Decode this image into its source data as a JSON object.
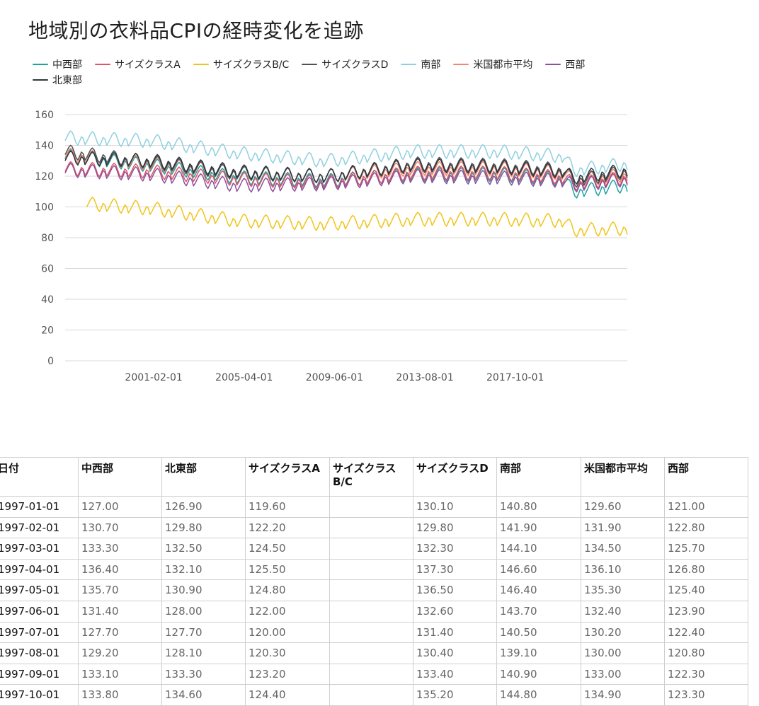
{
  "title": "地域別の衣料品CPIの経時変化を追跡",
  "legend": [
    {
      "name": "中西部",
      "color": "#1aa3a3"
    },
    {
      "name": "サイズクラスA",
      "color": "#e05563"
    },
    {
      "name": "サイズクラスB/C",
      "color": "#f0c419"
    },
    {
      "name": "サイズクラスD",
      "color": "#4b5357"
    },
    {
      "name": "南部",
      "color": "#8fd0e0"
    },
    {
      "name": "米国都市平均",
      "color": "#f2856a"
    },
    {
      "name": "西部",
      "color": "#8e4f9e"
    },
    {
      "name": "北東部",
      "color": "#2f3640"
    }
  ],
  "chart_data": {
    "type": "line",
    "title": "地域別の衣料品CPIの経時変化を追跡",
    "xlabel": "",
    "ylabel": "",
    "x_range": [
      "1997-01-01",
      "2022-12-01"
    ],
    "ylim": [
      0,
      160
    ],
    "y_ticks": [
      0,
      20,
      40,
      60,
      80,
      100,
      120,
      140,
      160
    ],
    "x_tick_labels": [
      "2001-02-01",
      "2005-04-01",
      "2009-06-01",
      "2013-08-01",
      "2017-10-01"
    ],
    "grid": "horizontal",
    "legend_position": "top",
    "seasonal_pattern_by_month": [
      0,
      2.5,
      5,
      6.5,
      5.5,
      2.5,
      -1,
      -2.5,
      0,
      3,
      2,
      -2
    ],
    "series": [
      {
        "name": "中西部",
        "color": "#1aa3a3",
        "anchors": [
          [
            "1997-01-01",
            131
          ],
          [
            "2001-01-01",
            125
          ],
          [
            "2005-01-01",
            117
          ],
          [
            "2009-01-01",
            115
          ],
          [
            "2013-01-01",
            119
          ],
          [
            "2017-01-01",
            119
          ],
          [
            "2020-01-01",
            116
          ],
          [
            "2020-06-01",
            108
          ],
          [
            "2022-12-01",
            112
          ]
        ]
      },
      {
        "name": "サイズクラスA",
        "color": "#e05563",
        "anchors": [
          [
            "1997-01-01",
            123
          ],
          [
            "2001-01-01",
            121
          ],
          [
            "2005-01-01",
            116
          ],
          [
            "2009-01-01",
            114
          ],
          [
            "2013-01-01",
            120
          ],
          [
            "2017-01-01",
            120
          ],
          [
            "2020-01-01",
            117
          ],
          [
            "2020-06-01",
            113
          ],
          [
            "2022-12-01",
            117
          ]
        ]
      },
      {
        "name": "サイズクラスB/C",
        "color": "#f0c419",
        "start": "1998-01-01",
        "anchors": [
          [
            "1998-01-01",
            100
          ],
          [
            "2001-01-01",
            97
          ],
          [
            "2005-01-01",
            89
          ],
          [
            "2009-01-01",
            87
          ],
          [
            "2013-01-01",
            90
          ],
          [
            "2017-01-01",
            90
          ],
          [
            "2020-01-01",
            89
          ],
          [
            "2020-06-01",
            83
          ],
          [
            "2022-12-01",
            84
          ]
        ]
      },
      {
        "name": "サイズクラスD",
        "color": "#4b5357",
        "anchors": [
          [
            "1997-01-01",
            134
          ],
          [
            "2001-01-01",
            127
          ],
          [
            "2005-01-01",
            120
          ],
          [
            "2009-01-01",
            118
          ],
          [
            "2013-01-01",
            126
          ],
          [
            "2017-01-01",
            125
          ],
          [
            "2020-01-01",
            122
          ],
          [
            "2020-06-01",
            115
          ],
          [
            "2022-12-01",
            121
          ]
        ]
      },
      {
        "name": "南部",
        "color": "#8fd0e0",
        "anchors": [
          [
            "1997-01-01",
            143
          ],
          [
            "2001-01-01",
            141
          ],
          [
            "2005-01-01",
            133
          ],
          [
            "2009-01-01",
            128
          ],
          [
            "2013-01-01",
            134
          ],
          [
            "2017-01-01",
            134
          ],
          [
            "2020-01-01",
            131
          ],
          [
            "2020-06-01",
            122
          ],
          [
            "2022-12-01",
            126
          ]
        ]
      },
      {
        "name": "米国都市平均",
        "color": "#f2856a",
        "anchors": [
          [
            "1997-01-01",
            132
          ],
          [
            "2001-01-01",
            126
          ],
          [
            "2005-01-01",
            120
          ],
          [
            "2009-01-01",
            118
          ],
          [
            "2013-01-01",
            123
          ],
          [
            "2017-01-01",
            123
          ],
          [
            "2020-01-01",
            120
          ],
          [
            "2020-06-01",
            115
          ],
          [
            "2022-12-01",
            119
          ]
        ]
      },
      {
        "name": "西部",
        "color": "#8e4f9e",
        "anchors": [
          [
            "1997-01-01",
            122
          ],
          [
            "2001-01-01",
            119
          ],
          [
            "2005-01-01",
            112
          ],
          [
            "2009-01-01",
            113
          ],
          [
            "2013-01-01",
            118
          ],
          [
            "2017-01-01",
            117
          ],
          [
            "2020-01-01",
            115
          ],
          [
            "2020-06-01",
            112
          ],
          [
            "2022-12-01",
            116
          ]
        ]
      },
      {
        "name": "北東部",
        "color": "#2f3640",
        "anchors": [
          [
            "1997-01-01",
            130
          ],
          [
            "2001-01-01",
            128
          ],
          [
            "2005-01-01",
            121
          ],
          [
            "2009-01-01",
            118
          ],
          [
            "2013-01-01",
            125
          ],
          [
            "2017-01-01",
            124
          ],
          [
            "2020-01-01",
            121
          ],
          [
            "2020-06-01",
            117
          ],
          [
            "2022-12-01",
            122
          ]
        ]
      }
    ]
  },
  "table": {
    "headers": [
      "日付",
      "中西部",
      "北東部",
      "サイズクラスA",
      "サイズクラスB/C",
      "サイズクラスD",
      "南部",
      "米国都市平均",
      "西部"
    ],
    "rows": [
      [
        "1997-01-01",
        "127.00",
        "126.90",
        "119.60",
        "",
        "130.10",
        "140.80",
        "129.60",
        "121.00"
      ],
      [
        "1997-02-01",
        "130.70",
        "129.80",
        "122.20",
        "",
        "129.80",
        "141.90",
        "131.90",
        "122.80"
      ],
      [
        "1997-03-01",
        "133.30",
        "132.50",
        "124.50",
        "",
        "132.30",
        "144.10",
        "134.50",
        "125.70"
      ],
      [
        "1997-04-01",
        "136.40",
        "132.10",
        "125.50",
        "",
        "137.30",
        "146.60",
        "136.10",
        "126.80"
      ],
      [
        "1997-05-01",
        "135.70",
        "130.90",
        "124.80",
        "",
        "136.50",
        "146.40",
        "135.30",
        "125.40"
      ],
      [
        "1997-06-01",
        "131.40",
        "128.00",
        "122.00",
        "",
        "132.60",
        "143.70",
        "132.40",
        "123.90"
      ],
      [
        "1997-07-01",
        "127.70",
        "127.70",
        "120.00",
        "",
        "131.40",
        "140.50",
        "130.20",
        "122.40"
      ],
      [
        "1997-08-01",
        "129.20",
        "128.10",
        "120.30",
        "",
        "130.40",
        "139.10",
        "130.00",
        "120.80"
      ],
      [
        "1997-09-01",
        "133.10",
        "133.30",
        "123.20",
        "",
        "133.40",
        "140.90",
        "133.00",
        "122.30"
      ],
      [
        "1997-10-01",
        "133.80",
        "134.60",
        "124.40",
        "",
        "135.20",
        "144.80",
        "134.90",
        "123.30"
      ]
    ]
  }
}
